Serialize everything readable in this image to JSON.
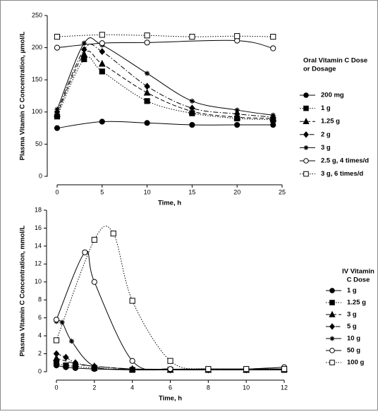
{
  "chart_data": [
    {
      "type": "line",
      "xlabel": "Time, h",
      "ylabel": "Plasma Vitamin C Concentration, µmol/L",
      "legend_title": [
        "Oral Vitamin C Dose",
        "or Dosage"
      ],
      "xlim": [
        0,
        25
      ],
      "xticks": [
        0,
        5,
        10,
        15,
        20,
        25
      ],
      "ylim": [
        0,
        250
      ],
      "yticks": [
        0,
        50,
        100,
        150,
        200,
        250
      ],
      "series": [
        {
          "name": "200 mg",
          "color": "#000000",
          "marker": "circle",
          "fill": true,
          "dash": "solid",
          "x": [
            0,
            5,
            10,
            15,
            20,
            24
          ],
          "values": [
            75,
            85,
            83,
            80,
            80,
            80
          ]
        },
        {
          "name": "1 g",
          "color": "#000000",
          "marker": "square",
          "fill": true,
          "dash": "dotted",
          "x": [
            0,
            3,
            5,
            10,
            15,
            20,
            24
          ],
          "values": [
            93,
            182,
            163,
            117,
            98,
            90,
            88
          ]
        },
        {
          "name": "1.25 g",
          "color": "#000000",
          "marker": "triangle",
          "fill": true,
          "dash": "dashed",
          "x": [
            0,
            3,
            5,
            10,
            15,
            20,
            24
          ],
          "values": [
            97,
            190,
            175,
            130,
            101,
            92,
            90
          ]
        },
        {
          "name": "2 g",
          "color": "#000000",
          "marker": "diamond",
          "fill": true,
          "dash": "dashdot",
          "x": [
            0,
            3,
            5,
            10,
            15,
            20,
            24
          ],
          "values": [
            100,
            197,
            194,
            140,
            106,
            97,
            92
          ]
        },
        {
          "name": "3 g",
          "color": "#000000",
          "marker": "star",
          "fill": true,
          "dash": "solid",
          "x": [
            0,
            3,
            5,
            10,
            15,
            20,
            24
          ],
          "values": [
            104,
            207,
            204,
            160,
            117,
            103,
            95
          ]
        },
        {
          "name": "2.5 g, 4 times/d",
          "color": "#000000",
          "marker": "circle",
          "fill": false,
          "dash": "solid",
          "x": [
            0,
            5,
            10,
            20,
            24
          ],
          "values": [
            200,
            207,
            208,
            211,
            199
          ]
        },
        {
          "name": "3 g, 6 times/d",
          "color": "#000000",
          "marker": "square",
          "fill": false,
          "dash": "dotted",
          "x": [
            0,
            5,
            10,
            15,
            20,
            24
          ],
          "values": [
            217,
            220,
            219,
            217,
            218,
            217
          ]
        }
      ]
    },
    {
      "type": "line",
      "xlabel": "Time, h",
      "ylabel": "Plasma Vitamin C Concentration, mmol/L",
      "legend_title": [
        "IV Vitamin",
        "C Dose"
      ],
      "xlim": [
        0,
        12
      ],
      "xticks": [
        0,
        2,
        4,
        6,
        8,
        10,
        12
      ],
      "ylim": [
        0,
        18
      ],
      "yticks": [
        0,
        2,
        4,
        6,
        8,
        10,
        12,
        14,
        16,
        18
      ],
      "series": [
        {
          "name": "1 g",
          "color": "#000000",
          "marker": "circle",
          "fill": true,
          "dash": "solid",
          "x": [
            0,
            0.5,
            1,
            2,
            4,
            6,
            8,
            10,
            12
          ],
          "values": [
            0.7,
            0.5,
            0.4,
            0.3,
            0.2,
            0.2,
            0.2,
            0.2,
            0.2
          ]
        },
        {
          "name": "1.25 g",
          "color": "#000000",
          "marker": "square",
          "fill": true,
          "dash": "dotted",
          "x": [
            0,
            0.5,
            1,
            2,
            4,
            6,
            8,
            10,
            12
          ],
          "values": [
            0.9,
            0.7,
            0.6,
            0.4,
            0.2,
            0.2,
            0.2,
            0.2,
            0.2
          ]
        },
        {
          "name": "3 g",
          "color": "#000000",
          "marker": "triangle",
          "fill": true,
          "dash": "dashed",
          "x": [
            0,
            1,
            2,
            4,
            6,
            8,
            10,
            12
          ],
          "values": [
            1.5,
            0.9,
            0.6,
            0.3,
            0.2,
            0.2,
            0.2,
            0.3
          ]
        },
        {
          "name": "5 g",
          "color": "#000000",
          "marker": "diamond",
          "fill": true,
          "dash": "dashdot",
          "x": [
            0,
            0.5,
            1,
            2,
            4,
            6,
            8,
            10,
            12
          ],
          "values": [
            2,
            1.6,
            1,
            0.6,
            0.3,
            0.2,
            0.2,
            0.2,
            0.3
          ]
        },
        {
          "name": "10 g",
          "color": "#000000",
          "marker": "star",
          "fill": true,
          "dash": "solid",
          "x": [
            0,
            0.3,
            0.8,
            2,
            4,
            8,
            10,
            12
          ],
          "values": [
            5.6,
            5.5,
            3.4,
            0.6,
            0.3,
            0.3,
            0.3,
            0.3
          ]
        },
        {
          "name": "50 g",
          "color": "#000000",
          "marker": "circle",
          "fill": false,
          "dash": "solid",
          "x": [
            0,
            1.5,
            2,
            4,
            6,
            8,
            10,
            12
          ],
          "values": [
            5.8,
            13.3,
            10,
            1.2,
            0.3,
            0.3,
            0.3,
            0.5
          ]
        },
        {
          "name": "100 g",
          "color": "#000000",
          "marker": "square",
          "fill": false,
          "dash": "dotted",
          "x": [
            0,
            2,
            3,
            4,
            6,
            8,
            10,
            12
          ],
          "values": [
            3.5,
            14.7,
            15.4,
            7.9,
            1.2,
            0.3,
            0.3,
            0.3
          ]
        }
      ]
    }
  ]
}
